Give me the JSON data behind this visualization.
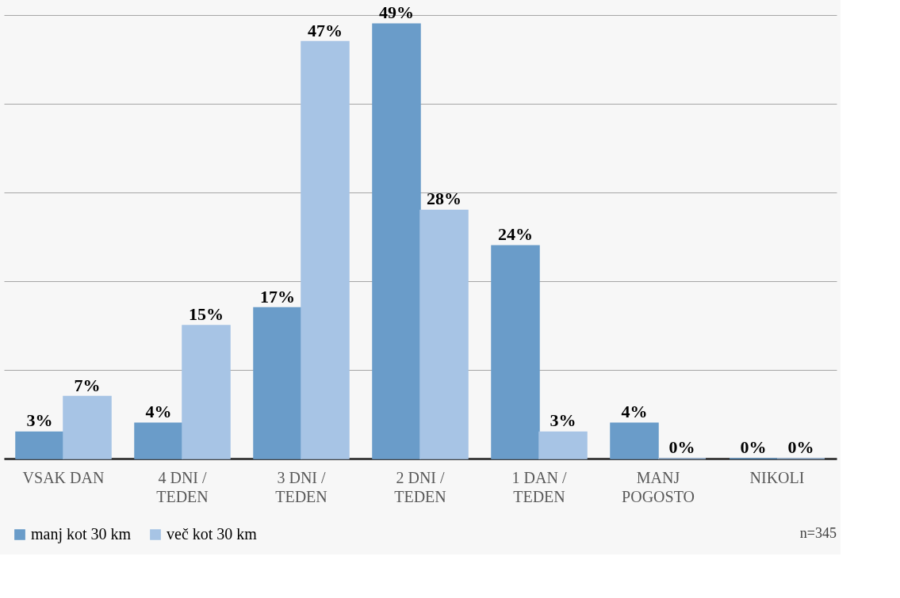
{
  "chart_data": {
    "type": "bar",
    "categories": [
      "VSAK DAN",
      "4 DNI / TEDEN",
      "3 DNI / TEDEN",
      "2 DNI / TEDEN",
      "1 DAN / TEDEN",
      "MANJ POGOSTO",
      "NIKOLI"
    ],
    "series": [
      {
        "name": "manj kot 30 km",
        "color": "#6a9cc9",
        "values": [
          3,
          4,
          17,
          49,
          24,
          4,
          0
        ],
        "value_labels": [
          "3%",
          "4%",
          "17%",
          "49%",
          "24%",
          "4%",
          "0%"
        ]
      },
      {
        "name": "več kot 30 km",
        "color": "#a7c4e5",
        "values": [
          7,
          15,
          47,
          28,
          3,
          0,
          0
        ],
        "value_labels": [
          "7%",
          "15%",
          "47%",
          "28%",
          "3%",
          "0%",
          "0%"
        ]
      }
    ],
    "grid": "y",
    "tick_labels": "x",
    "legend": "bottom",
    "annotations": [
      "n=345"
    ]
  }
}
